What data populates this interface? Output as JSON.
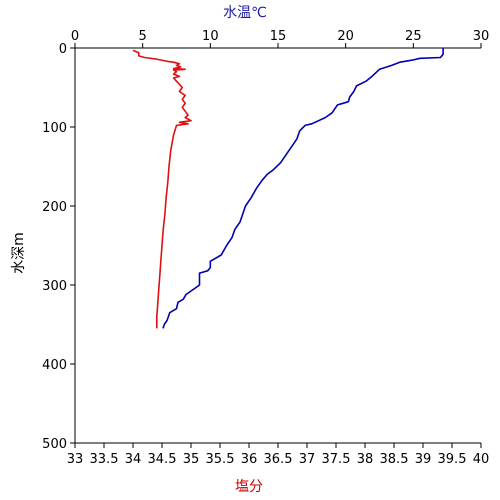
{
  "chart_data": {
    "type": "line",
    "title": "",
    "top_axis": {
      "label": "水温℃",
      "label_color": "#1a1aa6",
      "range": [
        0,
        30
      ],
      "ticks": [
        "0",
        "5",
        "10",
        "15",
        "20",
        "25",
        "30"
      ]
    },
    "bottom_axis": {
      "label": "塩分",
      "label_color": "#cc0000",
      "range": [
        33,
        40
      ],
      "ticks": [
        "33",
        "33.5",
        "34",
        "34.5",
        "35",
        "35.5",
        "36",
        "36.5",
        "37",
        "37.5",
        "38",
        "38.5",
        "39",
        "39.5",
        "40"
      ]
    },
    "left_axis": {
      "label": "水深m",
      "range": [
        0,
        500
      ],
      "inverted": true,
      "ticks": [
        "0",
        "100",
        "200",
        "300",
        "400",
        "500"
      ]
    },
    "grid": false,
    "series": [
      {
        "quantity": "temperature",
        "axis": "top",
        "color": "#0000b4",
        "points": [
          [
            27.2,
            0
          ],
          [
            27.2,
            8
          ],
          [
            27.0,
            12
          ],
          [
            25.5,
            13
          ],
          [
            25.0,
            15
          ],
          [
            24.0,
            18
          ],
          [
            23.4,
            22
          ],
          [
            22.5,
            27
          ],
          [
            22.0,
            35
          ],
          [
            21.5,
            42
          ],
          [
            20.8,
            48
          ],
          [
            20.6,
            55
          ],
          [
            20.3,
            62
          ],
          [
            20.2,
            68
          ],
          [
            19.8,
            70
          ],
          [
            19.4,
            72
          ],
          [
            19.2,
            77
          ],
          [
            19.0,
            82
          ],
          [
            18.5,
            88
          ],
          [
            18.0,
            92
          ],
          [
            17.5,
            96
          ],
          [
            17.0,
            98
          ],
          [
            16.6,
            105
          ],
          [
            16.4,
            115
          ],
          [
            16.0,
            125
          ],
          [
            15.6,
            135
          ],
          [
            15.2,
            145
          ],
          [
            14.6,
            155
          ],
          [
            14.2,
            160
          ],
          [
            13.8,
            168
          ],
          [
            13.4,
            178
          ],
          [
            13.0,
            190
          ],
          [
            12.6,
            200
          ],
          [
            12.4,
            210
          ],
          [
            12.2,
            220
          ],
          [
            11.8,
            230
          ],
          [
            11.6,
            240
          ],
          [
            11.2,
            250
          ],
          [
            10.8,
            262
          ],
          [
            10.0,
            270
          ],
          [
            10.0,
            278
          ],
          [
            9.8,
            282
          ],
          [
            9.2,
            285
          ],
          [
            9.2,
            300
          ],
          [
            8.8,
            305
          ],
          [
            8.2,
            312
          ],
          [
            8.0,
            318
          ],
          [
            7.6,
            322
          ],
          [
            7.5,
            330
          ],
          [
            7.0,
            335
          ],
          [
            6.9,
            340
          ],
          [
            6.8,
            345
          ],
          [
            6.6,
            350
          ],
          [
            6.5,
            355
          ]
        ]
      },
      {
        "quantity": "salinity",
        "axis": "bottom",
        "color": "#e01010",
        "points": [
          [
            34.0,
            3
          ],
          [
            34.1,
            6
          ],
          [
            34.1,
            10
          ],
          [
            34.2,
            12
          ],
          [
            34.4,
            14
          ],
          [
            34.6,
            17
          ],
          [
            34.7,
            18
          ],
          [
            34.8,
            20
          ],
          [
            34.75,
            22
          ],
          [
            34.82,
            24
          ],
          [
            34.7,
            26
          ],
          [
            34.9,
            27
          ],
          [
            34.7,
            28
          ],
          [
            34.75,
            30
          ],
          [
            34.7,
            33
          ],
          [
            34.8,
            36
          ],
          [
            34.7,
            38
          ],
          [
            34.75,
            42
          ],
          [
            34.8,
            46
          ],
          [
            34.85,
            50
          ],
          [
            34.8,
            55
          ],
          [
            34.9,
            60
          ],
          [
            34.85,
            65
          ],
          [
            34.9,
            70
          ],
          [
            34.85,
            75
          ],
          [
            34.9,
            80
          ],
          [
            34.95,
            85
          ],
          [
            34.9,
            88
          ],
          [
            35.0,
            92
          ],
          [
            34.8,
            94
          ],
          [
            34.95,
            96
          ],
          [
            34.75,
            98
          ],
          [
            34.7,
            110
          ],
          [
            34.65,
            130
          ],
          [
            34.62,
            150
          ],
          [
            34.6,
            170
          ],
          [
            34.57,
            190
          ],
          [
            34.55,
            210
          ],
          [
            34.52,
            230
          ],
          [
            34.5,
            250
          ],
          [
            34.48,
            270
          ],
          [
            34.46,
            290
          ],
          [
            34.44,
            310
          ],
          [
            34.42,
            330
          ],
          [
            34.41,
            340
          ],
          [
            34.41,
            355
          ]
        ]
      }
    ]
  }
}
